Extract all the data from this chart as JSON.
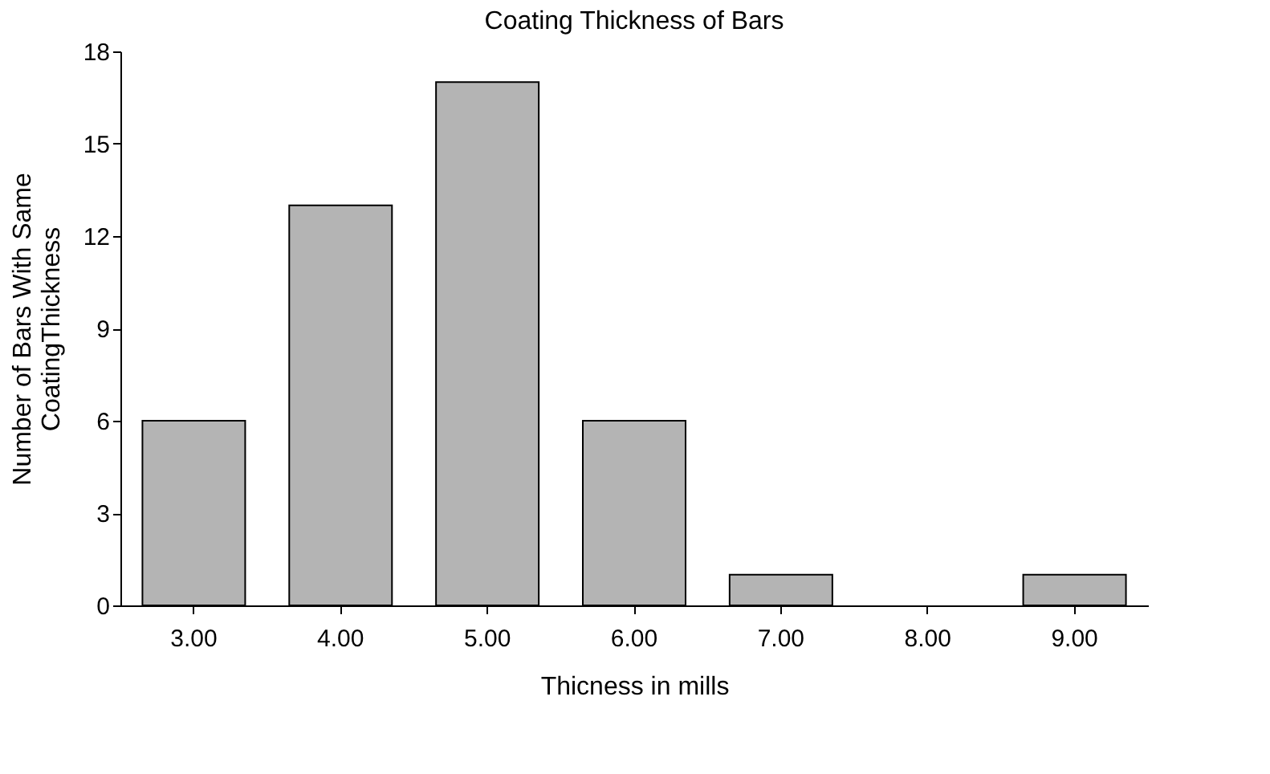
{
  "chart_data": {
    "type": "bar",
    "title": "Coating Thickness of Bars",
    "xlabel": "Thicness  in  mills",
    "ylabel": "Number  of  Bars With  Same\nCoatingThickness",
    "categories": [
      "3.00",
      "4.00",
      "5.00",
      "6.00",
      "7.00",
      "8.00",
      "9.00"
    ],
    "values": [
      6,
      13,
      17,
      6,
      1,
      0,
      1
    ],
    "color": "#b4b4b4",
    "ylim": [
      0,
      18
    ],
    "yticks": [
      0,
      3,
      6,
      9,
      12,
      15,
      18
    ],
    "grid": false
  }
}
